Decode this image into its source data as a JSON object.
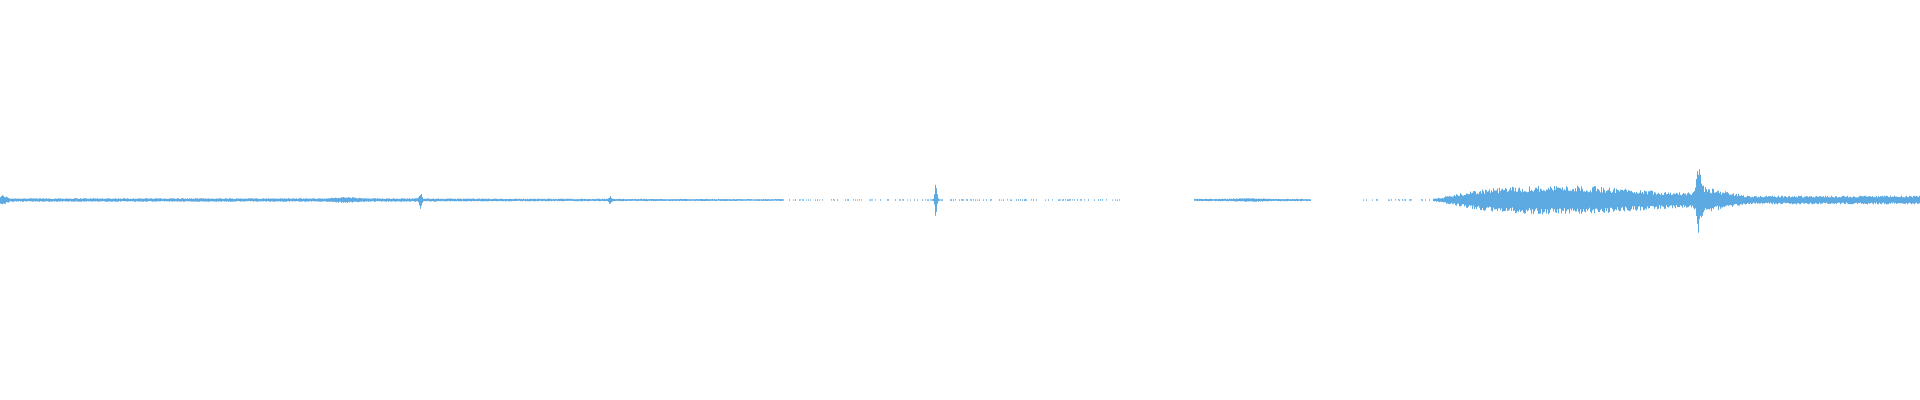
{
  "waveform": {
    "color": "#5DA9E1"
  }
}
